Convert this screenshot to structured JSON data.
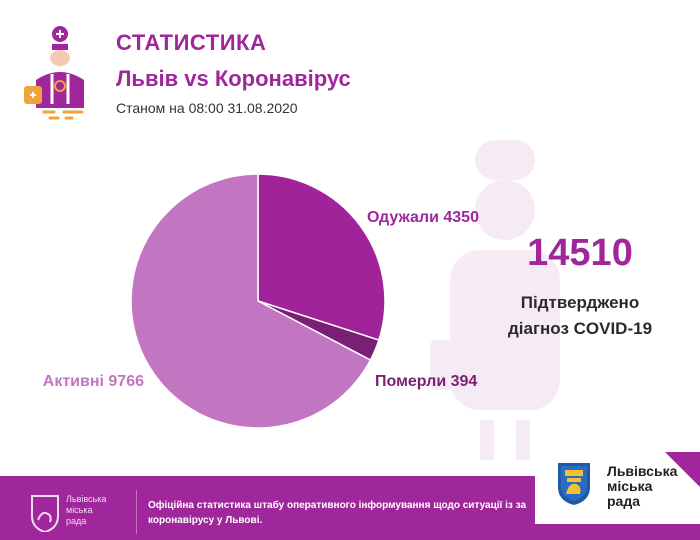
{
  "header": {
    "title": "СТАТИСТИКА",
    "subtitle": "Львів vs Коронавірус",
    "date_text": "Станом на 08:00 31.08.2020"
  },
  "chart_data": {
    "type": "pie",
    "slices": [
      {
        "label": "Одужали",
        "value": 4350,
        "color": "#a0239a"
      },
      {
        "label": "Померли",
        "value": 394,
        "color": "#7b1e76"
      },
      {
        "label": "Активні",
        "value": 9766,
        "color": "#c275c0"
      }
    ],
    "slice_labels": [
      "Одужали 4350",
      "Померли 394",
      "Активні 9766"
    ]
  },
  "summary": {
    "total": "14510",
    "caption_line1": "Підтверджено",
    "caption_line2": "діагноз COVID-19"
  },
  "footer": {
    "logo_text_line1": "Львівська",
    "logo_text_line2": "міська",
    "logo_text_line3": "рада",
    "text": "Офіційна статистика штабу оперативного інформування щодо ситуації із за коронавірусу у Львові."
  },
  "badge": {
    "line1": "Львівська",
    "line2": "міська",
    "line3": "рада"
  },
  "colors": {
    "accent": "#a0279b",
    "light_purple": "#c275c0",
    "dark_purple": "#7b1e76",
    "footer_bg": "#a0279b"
  },
  "icons": [
    "doctor-icon",
    "lion-coat-of-arms-icon"
  ]
}
